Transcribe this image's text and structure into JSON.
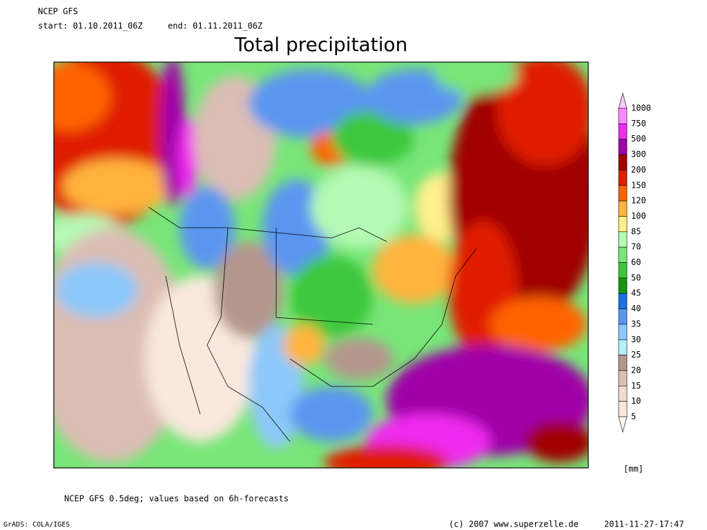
{
  "header": {
    "model": "NCEP GFS",
    "start": "start: 01.10.2011_06Z",
    "end": "end: 01.11.2011_06Z",
    "title": "Total precipitation"
  },
  "colorbar": {
    "levels": [
      1000,
      750,
      500,
      300,
      200,
      150,
      120,
      100,
      85,
      70,
      60,
      50,
      45,
      40,
      35,
      30,
      25,
      20,
      15,
      10,
      5
    ],
    "colors": [
      "#ffc8ff",
      "#ff8cff",
      "#f02cf0",
      "#a000a8",
      "#a00000",
      "#e01e00",
      "#ff6400",
      "#ffb43c",
      "#fff08c",
      "#b4fab4",
      "#78e678",
      "#3cc83c",
      "#149614",
      "#1e6ee6",
      "#5a96f0",
      "#8cc8fa",
      "#b4f0fa",
      "#b4968c",
      "#dcbeb4",
      "#f0dcd2",
      "#fae8de",
      "#fff6ec"
    ],
    "unit": "[mm]"
  },
  "footer": {
    "note": "NCEP GFS 0.5deg; values based on 6h-forecasts",
    "software": "GrADS: COLA/IGES",
    "copyright": "(c) 2007 www.superzelle.de",
    "timestamp": "2011-11-27-17:47"
  }
}
